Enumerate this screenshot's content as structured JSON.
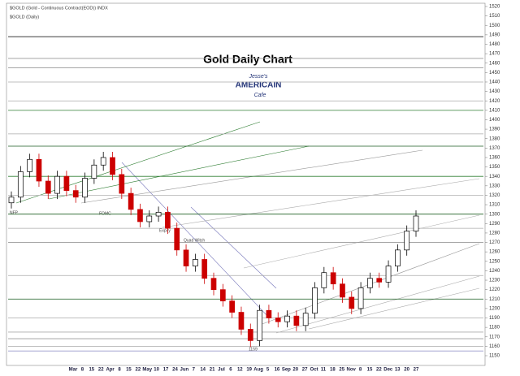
{
  "header": {
    "line1": "$GOLD (Gold - Continuous Contract(EOD)) INDX",
    "line2": "$GOLD (Daily)"
  },
  "logo": {
    "top": "Jesse's",
    "middle": "AMERICAIN",
    "bottom": "Cafe"
  },
  "annotations": [
    "NFP",
    "FOMC",
    "Expiry",
    "Quad Witch",
    "1159"
  ],
  "chart_data": {
    "type": "candlestick",
    "title": "Gold Daily Chart",
    "x_labels": [
      "Mar",
      "8",
      "15",
      "22",
      "Apr",
      "8",
      "15",
      "22",
      "May",
      "10",
      "17",
      "24",
      "Jun",
      "7",
      "14",
      "21",
      "Jul",
      "6",
      "12",
      "19",
      "Aug",
      "5",
      "16",
      "Sep",
      "20",
      "27",
      "Oct",
      "11",
      "18",
      "25",
      "Nov",
      "8",
      "15",
      "22",
      "Dec",
      "13",
      "20",
      "27"
    ],
    "open": [
      1312,
      1318,
      1345,
      1358,
      1335,
      1322,
      1340,
      1325,
      1318,
      1338,
      1352,
      1360,
      1342,
      1322,
      1305,
      1292,
      1298,
      1302,
      1285,
      1262,
      1245,
      1252,
      1232,
      1220,
      1208,
      1196,
      1178,
      1166,
      1198,
      1190,
      1186,
      1192,
      1182,
      1195,
      1222,
      1238,
      1226,
      1212,
      1200,
      1222,
      1232,
      1228,
      1245,
      1262,
      1282
    ],
    "high": [
      1324,
      1351,
      1364,
      1364,
      1341,
      1346,
      1346,
      1331,
      1344,
      1358,
      1366,
      1366,
      1348,
      1328,
      1311,
      1304,
      1308,
      1308,
      1291,
      1268,
      1258,
      1258,
      1238,
      1226,
      1214,
      1202,
      1184,
      1204,
      1204,
      1196,
      1198,
      1198,
      1201,
      1228,
      1244,
      1244,
      1232,
      1218,
      1228,
      1238,
      1238,
      1251,
      1268,
      1288,
      1304
    ],
    "low": [
      1306,
      1312,
      1339,
      1329,
      1316,
      1316,
      1319,
      1312,
      1312,
      1332,
      1346,
      1336,
      1316,
      1299,
      1286,
      1286,
      1292,
      1279,
      1256,
      1239,
      1239,
      1226,
      1214,
      1202,
      1190,
      1172,
      1159,
      1160,
      1184,
      1180,
      1180,
      1176,
      1176,
      1189,
      1216,
      1220,
      1206,
      1194,
      1194,
      1216,
      1222,
      1222,
      1239,
      1256,
      1276
    ],
    "close": [
      1318,
      1345,
      1358,
      1335,
      1322,
      1340,
      1325,
      1318,
      1338,
      1352,
      1360,
      1342,
      1322,
      1305,
      1292,
      1298,
      1302,
      1285,
      1262,
      1245,
      1252,
      1232,
      1220,
      1208,
      1196,
      1178,
      1166,
      1198,
      1190,
      1186,
      1192,
      1182,
      1195,
      1222,
      1238,
      1226,
      1212,
      1200,
      1222,
      1232,
      1228,
      1245,
      1262,
      1282,
      1298
    ],
    "up_color": "#000000",
    "down_color": "#cc0000",
    "levels": [
      {
        "value": 1488,
        "color": "#222222"
      },
      {
        "value": 1465,
        "color": "#999999"
      },
      {
        "value": 1455,
        "color": "#999999"
      },
      {
        "value": 1440,
        "color": "#aaaaaa"
      },
      {
        "value": 1420,
        "color": "#aaaaaa"
      },
      {
        "value": 1410,
        "color": "#2e7d32"
      },
      {
        "value": 1385,
        "color": "#aaaaaa"
      },
      {
        "value": 1372,
        "color": "#1b5e20"
      },
      {
        "value": 1340,
        "color": "#2e7d32"
      },
      {
        "value": 1320,
        "color": "#bbbbbb"
      },
      {
        "value": 1300,
        "color": "#1b5e20"
      },
      {
        "value": 1285,
        "color": "#aaaaaa"
      },
      {
        "value": 1270,
        "color": "#999999"
      },
      {
        "value": 1235,
        "color": "#aaaaaa"
      },
      {
        "value": 1210,
        "color": "#1b5e20"
      },
      {
        "value": 1190,
        "color": "#aaaaaa"
      },
      {
        "value": 1175,
        "color": "#aaaaaa"
      },
      {
        "value": 1168,
        "color": "#999999"
      },
      {
        "value": 1160,
        "color": "#aaaaaa"
      },
      {
        "value": 1155,
        "color": "#9999cc"
      }
    ],
    "ylim": [
      1150,
      1520
    ],
    "yticks": [
      1150,
      1160,
      1170,
      1180,
      1190,
      1200,
      1210,
      1220,
      1230,
      1240,
      1250,
      1260,
      1270,
      1280,
      1290,
      1300,
      1310,
      1320,
      1330,
      1340,
      1350,
      1360,
      1370,
      1380,
      1390,
      1400,
      1410,
      1420,
      1430,
      1440,
      1450,
      1460,
      1470,
      1480,
      1490,
      1500,
      1510,
      1520
    ]
  }
}
